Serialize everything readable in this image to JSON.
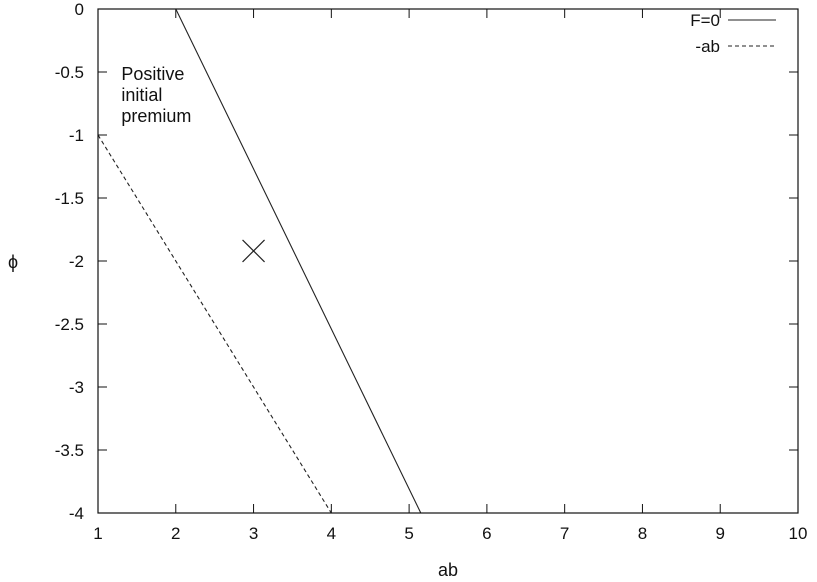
{
  "chart_data": {
    "type": "line",
    "title": "",
    "xlabel": "ab",
    "ylabel": "ϕ",
    "xlim": [
      1,
      10
    ],
    "ylim": [
      -4,
      0
    ],
    "xticks": [
      1,
      2,
      3,
      4,
      5,
      6,
      7,
      8,
      9,
      10
    ],
    "xtick_labels": [
      "1",
      "2",
      "3",
      "4",
      "5",
      "6",
      "7",
      "8",
      "9",
      "10"
    ],
    "yticks": [
      0,
      -0.5,
      -1,
      -1.5,
      -2,
      -2.5,
      -3,
      -3.5,
      -4
    ],
    "ytick_labels": [
      "0",
      "-0.5",
      "-1",
      "-1.5",
      "-2",
      "-2.5",
      "-3",
      "-3.5",
      "-4"
    ],
    "grid": false,
    "legend_position": "top-right",
    "series": [
      {
        "name": "F=0",
        "style": "solid",
        "color": "#222222",
        "x": [
          2.0,
          5.15
        ],
        "y": [
          0,
          -4
        ]
      },
      {
        "name": "-ab",
        "style": "dashed",
        "color": "#222222",
        "x": [
          1,
          4
        ],
        "y": [
          -1,
          -4
        ]
      }
    ],
    "marker": {
      "symbol": "x",
      "x": 3.0,
      "y": -1.92
    },
    "annotation": {
      "lines": [
        "Positive",
        "initial",
        "premium"
      ],
      "x": 1.3,
      "y": -0.5
    }
  }
}
